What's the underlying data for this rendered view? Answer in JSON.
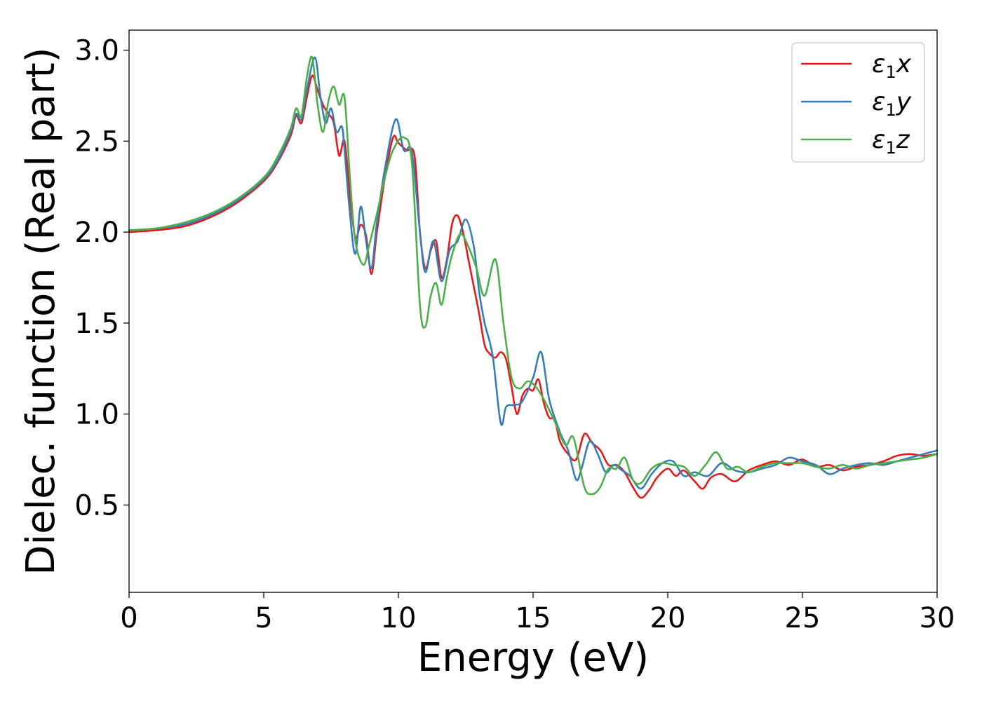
{
  "chart_data": {
    "type": "line",
    "xlabel": "Energy (eV)",
    "ylabel": "Dielec. function (Real part)",
    "xlim": [
      0,
      30
    ],
    "ylim": [
      0.02,
      3.11
    ],
    "x_ticks": [
      0,
      5,
      10,
      15,
      20,
      25,
      30
    ],
    "y_ticks": [
      0.5,
      1.0,
      1.5,
      2.0,
      2.5,
      3.0
    ],
    "x_tick_labels": [
      "0",
      "5",
      "10",
      "15",
      "20",
      "25",
      "30"
    ],
    "y_tick_labels": [
      "0.5",
      "1.0",
      "1.5",
      "2.0",
      "2.5",
      "3.0"
    ],
    "grid": false,
    "legend_position": "top-right",
    "series": [
      {
        "name": "ε₁x",
        "label_base": "ε",
        "label_sub": "1",
        "label_suffix": "x",
        "color": "#e41a1c",
        "points": [
          [
            0,
            2.0
          ],
          [
            1,
            2.01
          ],
          [
            2,
            2.03
          ],
          [
            3,
            2.08
          ],
          [
            4,
            2.16
          ],
          [
            5,
            2.28
          ],
          [
            5.5,
            2.38
          ],
          [
            6,
            2.53
          ],
          [
            6.2,
            2.64
          ],
          [
            6.4,
            2.6
          ],
          [
            6.6,
            2.74
          ],
          [
            6.8,
            2.86
          ],
          [
            7.0,
            2.78
          ],
          [
            7.2,
            2.7
          ],
          [
            7.4,
            2.65
          ],
          [
            7.6,
            2.6
          ],
          [
            7.8,
            2.42
          ],
          [
            8.0,
            2.5
          ],
          [
            8.2,
            2.2
          ],
          [
            8.4,
            1.97
          ],
          [
            8.6,
            2.04
          ],
          [
            8.8,
            1.98
          ],
          [
            9.0,
            1.77
          ],
          [
            9.2,
            2.0
          ],
          [
            9.5,
            2.3
          ],
          [
            9.8,
            2.52
          ],
          [
            10.0,
            2.49
          ],
          [
            10.3,
            2.45
          ],
          [
            10.6,
            2.42
          ],
          [
            10.8,
            2.0
          ],
          [
            11.0,
            1.8
          ],
          [
            11.2,
            1.9
          ],
          [
            11.4,
            1.95
          ],
          [
            11.6,
            1.75
          ],
          [
            11.8,
            1.85
          ],
          [
            12.0,
            2.05
          ],
          [
            12.2,
            2.09
          ],
          [
            12.4,
            2.0
          ],
          [
            12.6,
            1.85
          ],
          [
            12.8,
            1.7
          ],
          [
            13.0,
            1.55
          ],
          [
            13.2,
            1.38
          ],
          [
            13.4,
            1.33
          ],
          [
            13.6,
            1.31
          ],
          [
            13.8,
            1.34
          ],
          [
            14.0,
            1.3
          ],
          [
            14.2,
            1.15
          ],
          [
            14.4,
            1.0
          ],
          [
            14.6,
            1.1
          ],
          [
            14.8,
            1.14
          ],
          [
            15.0,
            1.13
          ],
          [
            15.2,
            1.19
          ],
          [
            15.4,
            1.06
          ],
          [
            15.6,
            0.98
          ],
          [
            15.8,
            0.97
          ],
          [
            16.0,
            0.85
          ],
          [
            16.3,
            0.78
          ],
          [
            16.6,
            0.75
          ],
          [
            16.9,
            0.89
          ],
          [
            17.2,
            0.84
          ],
          [
            17.5,
            0.8
          ],
          [
            17.8,
            0.72
          ],
          [
            18.1,
            0.72
          ],
          [
            18.4,
            0.68
          ],
          [
            18.7,
            0.6
          ],
          [
            19.0,
            0.54
          ],
          [
            19.3,
            0.58
          ],
          [
            19.6,
            0.65
          ],
          [
            20.0,
            0.7
          ],
          [
            20.3,
            0.66
          ],
          [
            20.6,
            0.69
          ],
          [
            21.0,
            0.63
          ],
          [
            21.3,
            0.59
          ],
          [
            21.6,
            0.65
          ],
          [
            22.0,
            0.67
          ],
          [
            22.5,
            0.63
          ],
          [
            23.0,
            0.69
          ],
          [
            23.5,
            0.72
          ],
          [
            24.0,
            0.74
          ],
          [
            24.5,
            0.72
          ],
          [
            25.0,
            0.75
          ],
          [
            25.5,
            0.71
          ],
          [
            26.0,
            0.72
          ],
          [
            26.5,
            0.69
          ],
          [
            27.0,
            0.71
          ],
          [
            27.5,
            0.72
          ],
          [
            28.0,
            0.74
          ],
          [
            28.5,
            0.77
          ],
          [
            29.0,
            0.78
          ],
          [
            29.5,
            0.77
          ],
          [
            30,
            0.78
          ]
        ]
      },
      {
        "name": "ε₁y",
        "label_base": "ε",
        "label_sub": "1",
        "label_suffix": "y",
        "color": "#377eb8",
        "points": [
          [
            0,
            2.01
          ],
          [
            1,
            2.02
          ],
          [
            2,
            2.04
          ],
          [
            3,
            2.09
          ],
          [
            4,
            2.17
          ],
          [
            5,
            2.29
          ],
          [
            5.5,
            2.39
          ],
          [
            6,
            2.55
          ],
          [
            6.2,
            2.65
          ],
          [
            6.4,
            2.62
          ],
          [
            6.6,
            2.78
          ],
          [
            6.9,
            2.96
          ],
          [
            7.1,
            2.75
          ],
          [
            7.3,
            2.6
          ],
          [
            7.5,
            2.68
          ],
          [
            7.7,
            2.55
          ],
          [
            7.9,
            2.58
          ],
          [
            8.0,
            2.45
          ],
          [
            8.2,
            2.1
          ],
          [
            8.4,
            1.88
          ],
          [
            8.6,
            2.14
          ],
          [
            8.8,
            1.95
          ],
          [
            9.0,
            1.8
          ],
          [
            9.2,
            2.05
          ],
          [
            9.5,
            2.35
          ],
          [
            9.9,
            2.62
          ],
          [
            10.2,
            2.45
          ],
          [
            10.5,
            2.44
          ],
          [
            10.8,
            2.0
          ],
          [
            11.0,
            1.78
          ],
          [
            11.3,
            1.95
          ],
          [
            11.6,
            1.73
          ],
          [
            11.9,
            1.9
          ],
          [
            12.2,
            1.95
          ],
          [
            12.5,
            2.07
          ],
          [
            12.8,
            1.92
          ],
          [
            13.0,
            1.67
          ],
          [
            13.2,
            1.5
          ],
          [
            13.5,
            1.32
          ],
          [
            13.8,
            0.95
          ],
          [
            14.0,
            1.04
          ],
          [
            14.3,
            1.05
          ],
          [
            14.6,
            1.07
          ],
          [
            15.0,
            1.2
          ],
          [
            15.3,
            1.34
          ],
          [
            15.6,
            1.08
          ],
          [
            16.0,
            0.9
          ],
          [
            16.3,
            0.8
          ],
          [
            16.6,
            0.64
          ],
          [
            16.8,
            0.7
          ],
          [
            17.1,
            0.85
          ],
          [
            17.4,
            0.78
          ],
          [
            17.7,
            0.68
          ],
          [
            18.0,
            0.72
          ],
          [
            18.3,
            0.69
          ],
          [
            18.6,
            0.66
          ],
          [
            19.0,
            0.59
          ],
          [
            19.4,
            0.67
          ],
          [
            19.8,
            0.73
          ],
          [
            20.2,
            0.74
          ],
          [
            20.6,
            0.66
          ],
          [
            21.0,
            0.68
          ],
          [
            21.5,
            0.66
          ],
          [
            22.0,
            0.73
          ],
          [
            22.5,
            0.69
          ],
          [
            23.0,
            0.68
          ],
          [
            23.5,
            0.7
          ],
          [
            24.0,
            0.72
          ],
          [
            24.5,
            0.76
          ],
          [
            25.0,
            0.74
          ],
          [
            25.5,
            0.72
          ],
          [
            26.0,
            0.67
          ],
          [
            26.5,
            0.7
          ],
          [
            27.0,
            0.72
          ],
          [
            27.5,
            0.73
          ],
          [
            28.0,
            0.72
          ],
          [
            28.5,
            0.74
          ],
          [
            29.0,
            0.76
          ],
          [
            29.5,
            0.78
          ],
          [
            30,
            0.8
          ]
        ]
      },
      {
        "name": "ε₁z",
        "label_base": "ε",
        "label_sub": "1",
        "label_suffix": "z",
        "color": "#4daf4a",
        "points": [
          [
            0,
            2.01
          ],
          [
            1,
            2.02
          ],
          [
            2,
            2.05
          ],
          [
            3,
            2.1
          ],
          [
            4,
            2.18
          ],
          [
            5,
            2.3
          ],
          [
            5.5,
            2.41
          ],
          [
            6,
            2.57
          ],
          [
            6.2,
            2.68
          ],
          [
            6.4,
            2.64
          ],
          [
            6.6,
            2.85
          ],
          [
            6.8,
            2.96
          ],
          [
            7.0,
            2.7
          ],
          [
            7.2,
            2.55
          ],
          [
            7.4,
            2.72
          ],
          [
            7.6,
            2.8
          ],
          [
            7.8,
            2.7
          ],
          [
            8.0,
            2.74
          ],
          [
            8.2,
            2.3
          ],
          [
            8.4,
            1.95
          ],
          [
            8.7,
            1.82
          ],
          [
            8.9,
            1.92
          ],
          [
            9.2,
            2.1
          ],
          [
            9.5,
            2.3
          ],
          [
            9.8,
            2.45
          ],
          [
            10.2,
            2.52
          ],
          [
            10.5,
            2.38
          ],
          [
            10.8,
            1.6
          ],
          [
            11.0,
            1.48
          ],
          [
            11.2,
            1.65
          ],
          [
            11.4,
            1.72
          ],
          [
            11.6,
            1.6
          ],
          [
            11.8,
            1.75
          ],
          [
            12.0,
            1.88
          ],
          [
            12.3,
            1.99
          ],
          [
            12.6,
            1.92
          ],
          [
            12.9,
            1.8
          ],
          [
            13.2,
            1.65
          ],
          [
            13.6,
            1.85
          ],
          [
            13.9,
            1.5
          ],
          [
            14.2,
            1.2
          ],
          [
            14.5,
            1.14
          ],
          [
            14.8,
            1.18
          ],
          [
            15.1,
            1.15
          ],
          [
            15.4,
            1.08
          ],
          [
            15.8,
            0.96
          ],
          [
            16.2,
            0.83
          ],
          [
            16.5,
            0.87
          ],
          [
            16.9,
            0.6
          ],
          [
            17.2,
            0.56
          ],
          [
            17.5,
            0.6
          ],
          [
            17.8,
            0.7
          ],
          [
            18.1,
            0.7
          ],
          [
            18.4,
            0.76
          ],
          [
            18.7,
            0.64
          ],
          [
            19.0,
            0.62
          ],
          [
            19.4,
            0.7
          ],
          [
            19.8,
            0.73
          ],
          [
            20.2,
            0.72
          ],
          [
            20.6,
            0.71
          ],
          [
            21.0,
            0.66
          ],
          [
            21.4,
            0.72
          ],
          [
            21.8,
            0.79
          ],
          [
            22.2,
            0.7
          ],
          [
            22.6,
            0.71
          ],
          [
            23.0,
            0.68
          ],
          [
            23.5,
            0.71
          ],
          [
            24.0,
            0.73
          ],
          [
            24.5,
            0.73
          ],
          [
            25.0,
            0.73
          ],
          [
            25.5,
            0.71
          ],
          [
            26.0,
            0.7
          ],
          [
            26.5,
            0.72
          ],
          [
            27.0,
            0.7
          ],
          [
            27.5,
            0.72
          ],
          [
            28.0,
            0.73
          ],
          [
            28.5,
            0.74
          ],
          [
            29.0,
            0.75
          ],
          [
            29.5,
            0.76
          ],
          [
            30,
            0.78
          ]
        ]
      }
    ]
  }
}
